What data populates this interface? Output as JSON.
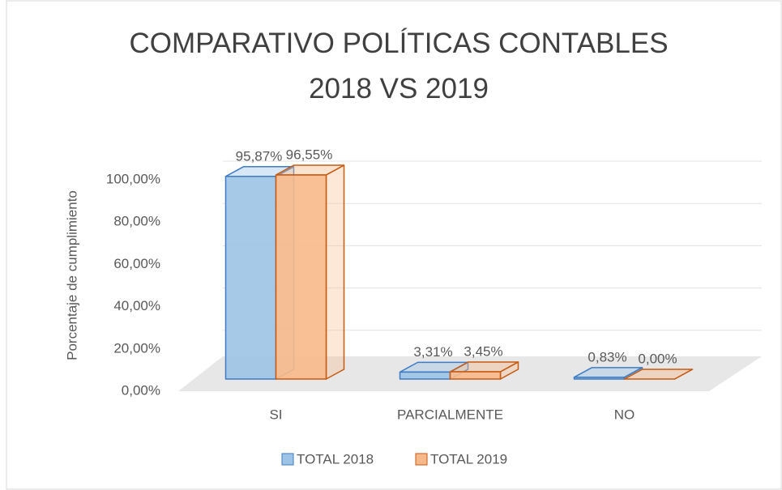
{
  "chart_data": {
    "type": "bar3d",
    "title": "COMPARATIVO POLÍTICAS CONTABLES 2018 VS 2019",
    "y_label": "Porcentaje de cumplimiento",
    "categories": [
      "SI",
      "PARCIALMENTE",
      "NO"
    ],
    "series": [
      {
        "name": "TOTAL 2018",
        "color": "#9dc3e6",
        "stroke": "#3d7cc4",
        "values": [
          95.87,
          3.31,
          0.83
        ],
        "value_labels": [
          "95,87%",
          "3,31%",
          "0,83%"
        ]
      },
      {
        "name": "TOTAL 2019",
        "color": "#f8b98a",
        "stroke": "#c55a11",
        "values": [
          96.55,
          3.45,
          0.0
        ],
        "value_labels": [
          "96,55%",
          "3,45%",
          "0,00%"
        ]
      }
    ],
    "ylim": [
      0,
      100
    ],
    "yticks": [
      {
        "value": 0,
        "label": "0,00%"
      },
      {
        "value": 20,
        "label": "20,00%"
      },
      {
        "value": 40,
        "label": "40,00%"
      },
      {
        "value": 60,
        "label": "60,00%"
      },
      {
        "value": 80,
        "label": "80,00%"
      },
      {
        "value": 100,
        "label": "100,00%"
      }
    ],
    "grid": true,
    "legend": "bottom"
  }
}
